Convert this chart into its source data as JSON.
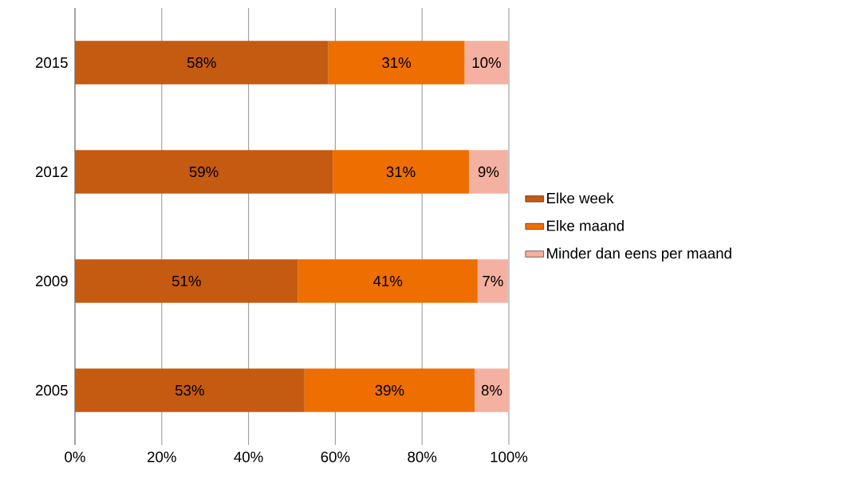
{
  "chart_data": {
    "type": "bar",
    "orientation": "horizontal",
    "stacked": true,
    "categories": [
      "2015",
      "2012",
      "2009",
      "2005"
    ],
    "series": [
      {
        "name": "Elke week",
        "color": "#c55a11",
        "values": [
          58.4,
          59.4,
          51.4,
          52.9
        ],
        "value_labels": [
          "58%",
          "59%",
          "51%",
          "53%"
        ]
      },
      {
        "name": "Elke maand",
        "color": "#ee6e00",
        "values": [
          31.4,
          31.4,
          41.4,
          39.2
        ],
        "value_labels": [
          "31%",
          "31%",
          "41%",
          "39%"
        ]
      },
      {
        "name": "Minder dan eens per maand",
        "color": "#f4b0a0",
        "values": [
          10.1,
          9.0,
          7.0,
          7.9
        ],
        "value_labels": [
          "10%",
          "9%",
          "7%",
          "8%"
        ]
      }
    ],
    "xlim": [
      0,
      100
    ],
    "xticks": [
      {
        "value": 0,
        "label": "0%"
      },
      {
        "value": 20,
        "label": "20%"
      },
      {
        "value": 40,
        "label": "40%"
      },
      {
        "value": 60,
        "label": "60%"
      },
      {
        "value": 80,
        "label": "80%"
      },
      {
        "value": 100,
        "label": "100%"
      }
    ],
    "grid": "x",
    "legend": "right"
  }
}
